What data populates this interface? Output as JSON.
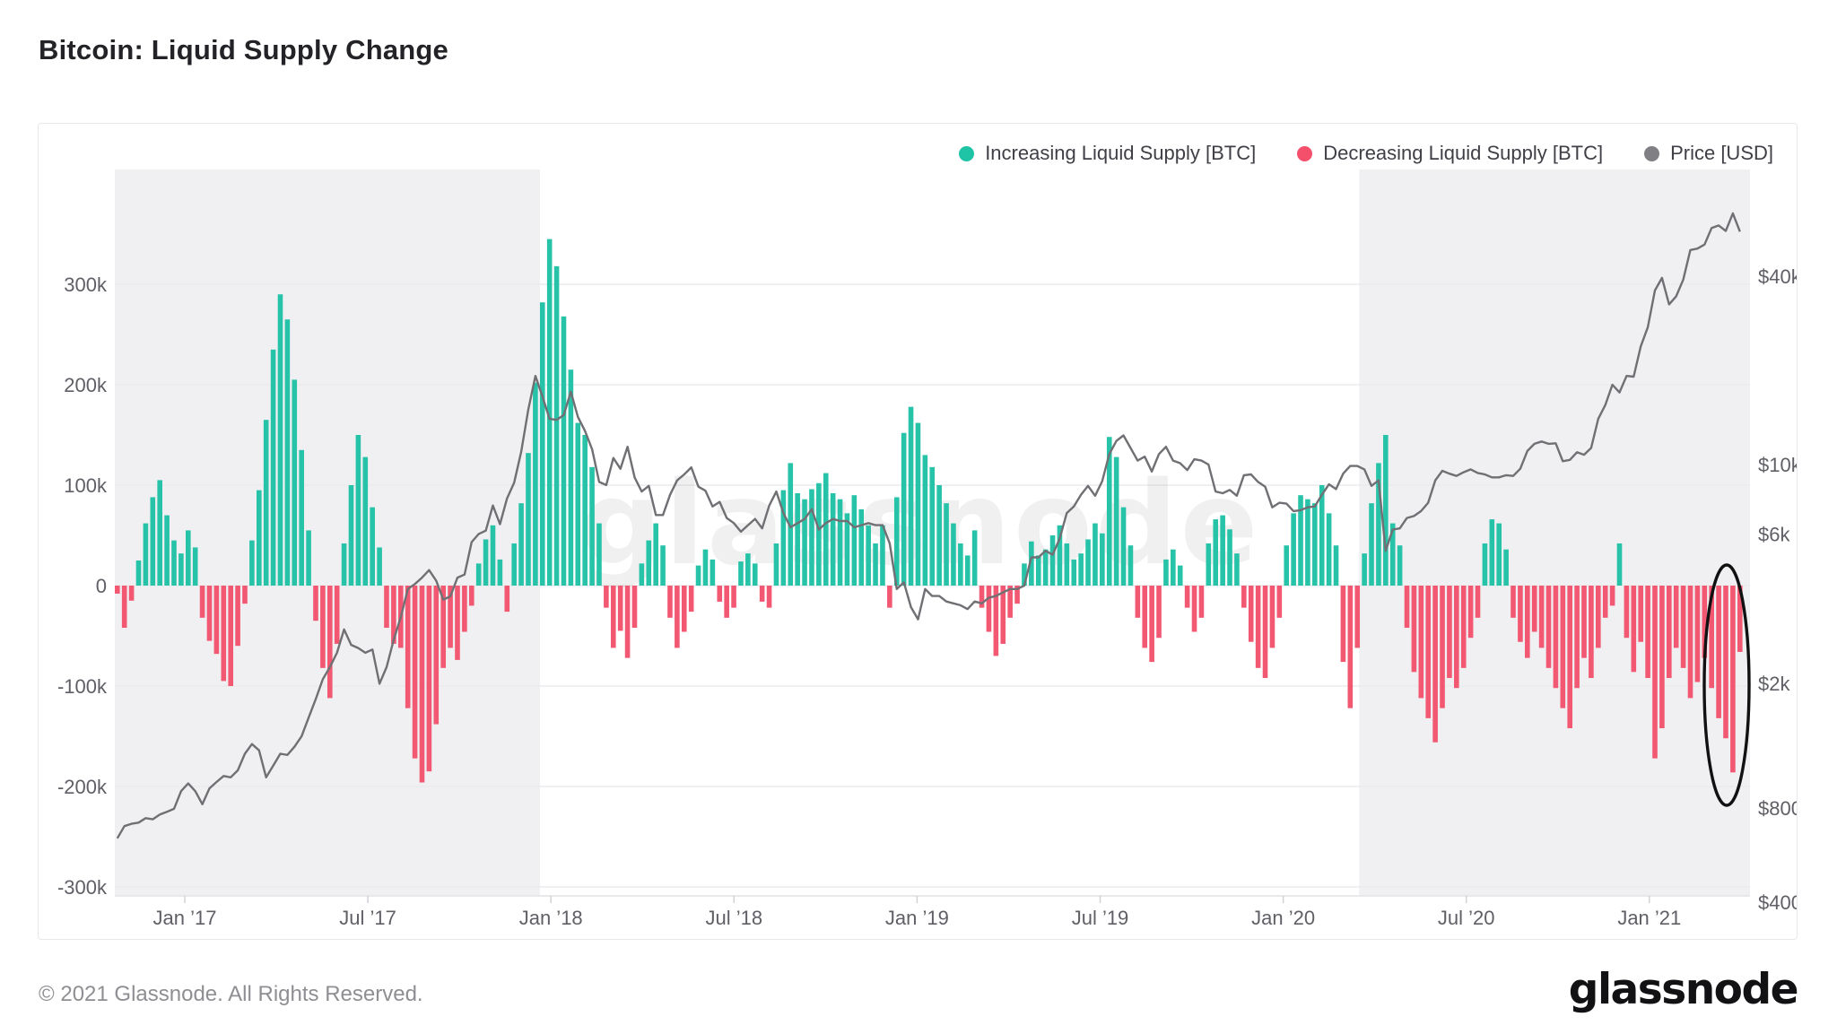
{
  "page": {
    "title": "Bitcoin: Liquid Supply Change",
    "footer_copyright": "© 2021 Glassnode. All Rights Reserved.",
    "brand_logo": "glassnode",
    "watermark": "glassnode"
  },
  "legend": [
    {
      "label": "Increasing Liquid Supply [BTC]",
      "color": "#1fc4a6"
    },
    {
      "label": "Decreasing Liquid Supply [BTC]",
      "color": "#f4506c"
    },
    {
      "label": "Price [USD]",
      "color": "#808084"
    }
  ],
  "colors": {
    "increasing_bar": "#27c3a8",
    "decreasing_bar": "#f25872",
    "price_line": "#707074",
    "shaded_band": "#f0f0f2",
    "gridline": "#ebebee",
    "axis_line": "#e2e2e6",
    "tick_text": "#5f5f66",
    "annotation_ellipse": "#111111",
    "watermark_text": "#000000"
  },
  "chart_data": {
    "type": "bar",
    "subtype": "bar-with-log-price-line",
    "title": "Bitcoin: Liquid Supply Change",
    "x_unit": "weekly samples, Oct 2016 - Apr 2021",
    "x_tick_labels": [
      "Jan ’17",
      "Jul ’17",
      "Jan ’18",
      "Jul ’18",
      "Jan ’19",
      "Jul ’19",
      "Jan ’20",
      "Jul ’20",
      "Jan ’21"
    ],
    "left_axis": {
      "ticks": [
        {
          "label": "300k",
          "value": 300000
        },
        {
          "label": "200k",
          "value": 200000
        },
        {
          "label": "100k",
          "value": 100000
        },
        {
          "label": "0",
          "value": 0
        },
        {
          "label": "-100k",
          "value": -100000
        },
        {
          "label": "-200k",
          "value": -200000
        },
        {
          "label": "-300k",
          "value": -300000
        }
      ],
      "range": [
        -335000,
        395000
      ],
      "grid": true
    },
    "right_axis": {
      "scale": "log",
      "ticks": [
        {
          "label": "$40k",
          "value": 40000
        },
        {
          "label": "$10k",
          "value": 10000
        },
        {
          "label": "$6k",
          "value": 6000
        },
        {
          "label": "$2k",
          "value": 2000
        },
        {
          "label": "$800",
          "value": 800
        },
        {
          "label": "$400",
          "value": 400
        }
      ]
    },
    "legend_position": "top-right",
    "shaded_bands_x_fraction": [
      [
        0.0,
        0.26
      ],
      [
        0.761,
        1.0
      ]
    ],
    "series": [
      {
        "name": "Liquid Supply Change [BTC]",
        "unit": "BTC per period; positive = Increasing Liquid Supply (teal), negative = Decreasing Liquid Supply (red)",
        "values": [
          -8000,
          -42000,
          -15000,
          25000,
          62000,
          88000,
          105000,
          70000,
          45000,
          32000,
          55000,
          38000,
          -32000,
          -55000,
          -68000,
          -95000,
          -100000,
          -60000,
          -18000,
          45000,
          95000,
          165000,
          235000,
          290000,
          265000,
          205000,
          135000,
          55000,
          -35000,
          -82000,
          -112000,
          -58000,
          42000,
          100000,
          150000,
          128000,
          78000,
          38000,
          -42000,
          -58000,
          -62000,
          -122000,
          -172000,
          -196000,
          -185000,
          -138000,
          -82000,
          -62000,
          -74000,
          -46000,
          -20000,
          22000,
          46000,
          60000,
          26000,
          -26000,
          42000,
          82000,
          132000,
          202000,
          282000,
          345000,
          318000,
          268000,
          215000,
          162000,
          150000,
          118000,
          62000,
          -22000,
          -62000,
          -45000,
          -72000,
          -42000,
          22000,
          45000,
          62000,
          40000,
          -32000,
          -62000,
          -46000,
          -26000,
          20000,
          36000,
          26000,
          -16000,
          -32000,
          -22000,
          24000,
          32000,
          22000,
          -16000,
          -22000,
          42000,
          95000,
          122000,
          92000,
          86000,
          96000,
          102000,
          112000,
          92000,
          86000,
          72000,
          90000,
          76000,
          60000,
          42000,
          60000,
          -22000,
          88000,
          152000,
          178000,
          162000,
          130000,
          118000,
          100000,
          82000,
          62000,
          42000,
          30000,
          55000,
          -22000,
          -46000,
          -70000,
          -58000,
          -32000,
          -18000,
          22000,
          44000,
          30000,
          36000,
          50000,
          60000,
          42000,
          26000,
          32000,
          46000,
          62000,
          52000,
          148000,
          128000,
          78000,
          40000,
          -32000,
          -62000,
          -76000,
          -52000,
          26000,
          36000,
          20000,
          -22000,
          -46000,
          -32000,
          42000,
          66000,
          70000,
          56000,
          32000,
          -22000,
          -56000,
          -82000,
          -92000,
          -62000,
          -32000,
          40000,
          72000,
          90000,
          86000,
          82000,
          100000,
          72000,
          40000,
          -76000,
          -122000,
          -62000,
          32000,
          82000,
          122000,
          150000,
          62000,
          40000,
          -42000,
          -86000,
          -112000,
          -132000,
          -156000,
          -122000,
          -92000,
          -102000,
          -82000,
          -52000,
          -32000,
          42000,
          66000,
          62000,
          36000,
          -32000,
          -56000,
          -72000,
          -46000,
          -62000,
          -82000,
          -102000,
          -122000,
          -142000,
          -102000,
          -72000,
          -92000,
          -62000,
          -32000,
          -20000,
          42000,
          -52000,
          -86000,
          -56000,
          -92000,
          -172000,
          -142000,
          -92000,
          -62000,
          -82000,
          -112000,
          -96000,
          -72000,
          -102000,
          -132000,
          -152000,
          -186000,
          -66000
        ]
      },
      {
        "name": "Price [USD]",
        "unit": "USD",
        "values": [
          640,
          700,
          712,
          718,
          742,
          736,
          762,
          778,
          795,
          905,
          958,
          905,
          822,
          924,
          968,
          1012,
          1002,
          1055,
          1192,
          1280,
          1222,
          1002,
          1092,
          1192,
          1182,
          1255,
          1355,
          1555,
          1782,
          2062,
          2255,
          2505,
          2975,
          2655,
          2595,
          2505,
          2565,
          1995,
          2255,
          2755,
          3255,
          4005,
          4155,
          4355,
          4605,
          4255,
          3705,
          3795,
          4355,
          4455,
          5655,
          6005,
          6155,
          7405,
          6455,
          7805,
          8755,
          11005,
          15005,
          19205,
          16505,
          14005,
          13905,
          14405,
          17105,
          14205,
          12805,
          11205,
          8805,
          8605,
          10505,
          9705,
          11405,
          9105,
          8205,
          8555,
          6905,
          6905,
          8005,
          8905,
          9305,
          9805,
          8505,
          8255,
          7355,
          7605,
          6755,
          6505,
          6105,
          6405,
          6705,
          6255,
          7405,
          8205,
          7005,
          6305,
          6505,
          6705,
          7205,
          6205,
          6505,
          6705,
          6605,
          6605,
          6305,
          6405,
          6505,
          6405,
          6405,
          5605,
          4005,
          4205,
          3505,
          3205,
          4005,
          3805,
          3805,
          3655,
          3605,
          3555,
          3455,
          3655,
          3605,
          3755,
          3805,
          3905,
          4005,
          4005,
          4105,
          5055,
          5055,
          5305,
          5155,
          5805,
          7005,
          7355,
          8005,
          8555,
          7955,
          8855,
          10805,
          11905,
          12405,
          11305,
          10305,
          10605,
          9505,
          10805,
          11405,
          10305,
          10105,
          9605,
          10405,
          10305,
          10005,
          8205,
          8105,
          8305,
          7955,
          9255,
          9305,
          8805,
          8505,
          7305,
          7555,
          7505,
          7105,
          7155,
          7305,
          7355,
          8005,
          8655,
          8355,
          9355,
          9905,
          9905,
          9655,
          8555,
          8905,
          5305,
          6205,
          6255,
          6755,
          6855,
          7105,
          7555,
          8905,
          9555,
          9355,
          9205,
          9455,
          9655,
          9405,
          9305,
          9105,
          9105,
          9255,
          9205,
          9705,
          11055,
          11655,
          11855,
          11655,
          11705,
          10255,
          10355,
          10955,
          10755,
          11305,
          14005,
          15505,
          18005,
          17005,
          19205,
          19105,
          23855,
          27505,
          36005,
          39505,
          32505,
          34505,
          39005,
          48505,
          49005,
          50505,
          57005,
          58105,
          55805,
          63505,
          55505
        ]
      }
    ],
    "annotation": {
      "type": "ellipse",
      "description": "Hand-drawn black ellipse circling the large decreasing-liquid-supply bars at the far right (Mar-Apr 2021)"
    }
  }
}
